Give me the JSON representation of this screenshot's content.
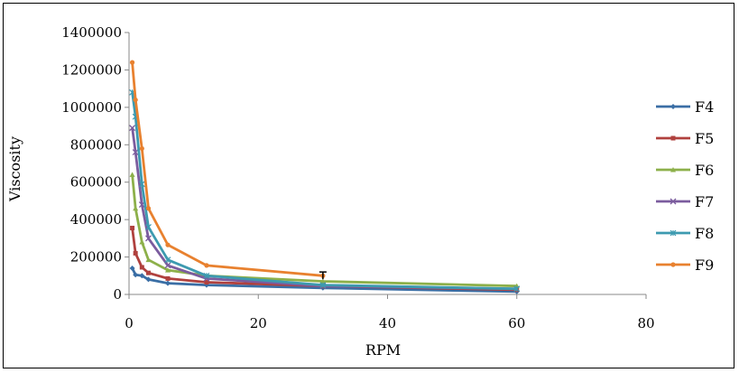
{
  "chart_data": {
    "type": "line",
    "title": "",
    "xlabel": "RPM",
    "ylabel": "Viscosity",
    "xlim": [
      0,
      80
    ],
    "ylim": [
      0,
      1400000
    ],
    "xticks": [
      0,
      20,
      40,
      60,
      80
    ],
    "yticks": [
      0,
      200000,
      400000,
      600000,
      800000,
      1000000,
      1200000,
      1400000
    ],
    "grid": false,
    "legend_position": "right",
    "x": [
      0.5,
      1,
      2,
      3,
      6,
      12,
      30,
      60
    ],
    "series": [
      {
        "name": "F4",
        "color": "#3a6ea5",
        "marker": "diamond",
        "values": [
          140000,
          105000,
          100000,
          80000,
          60000,
          50000,
          35000,
          15000
        ]
      },
      {
        "name": "F5",
        "color": "#b0413e",
        "marker": "square",
        "values": [
          355000,
          220000,
          145000,
          115000,
          85000,
          65000,
          45000,
          25000
        ]
      },
      {
        "name": "F6",
        "color": "#8db04a",
        "marker": "triangle",
        "values": [
          640000,
          460000,
          280000,
          185000,
          130000,
          100000,
          70000,
          45000
        ]
      },
      {
        "name": "F7",
        "color": "#7b5c9e",
        "marker": "x",
        "values": [
          890000,
          760000,
          480000,
          300000,
          155000,
          85000,
          45000,
          30000
        ]
      },
      {
        "name": "F8",
        "color": "#3d9ab0",
        "marker": "star",
        "values": [
          1080000,
          950000,
          590000,
          360000,
          185000,
          100000,
          50000,
          30000
        ]
      },
      {
        "name": "F9",
        "color": "#e8812f",
        "marker": "circle",
        "values": [
          1240000,
          1040000,
          780000,
          460000,
          265000,
          155000,
          100000,
          null
        ]
      }
    ],
    "error_bars": [
      {
        "x": 30,
        "y": 120000
      }
    ]
  }
}
